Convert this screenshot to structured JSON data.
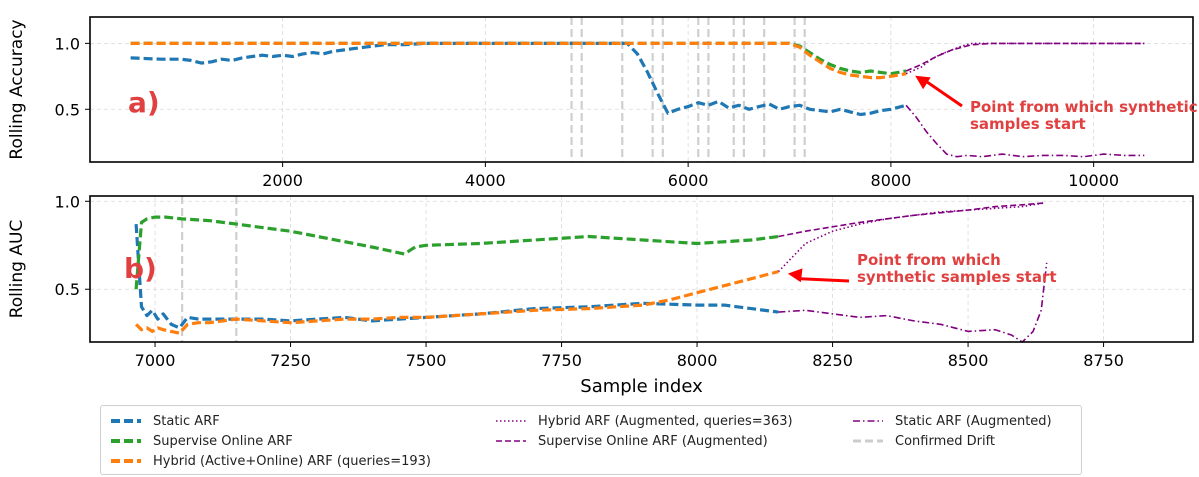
{
  "chart_data": [
    {
      "panel_label": "a)",
      "type": "line",
      "xlabel": "",
      "ylabel": "Rolling Accuracy",
      "xlim": [
        100,
        10980
      ],
      "ylim": [
        0.1,
        1.2
      ],
      "xticks": [
        "2000",
        "4000",
        "6000",
        "8000",
        "10000"
      ],
      "yticks": [
        "0.5",
        "1.0"
      ],
      "grid": true,
      "annotation": {
        "text_lines": [
          "Point from which synthetic",
          "samples start"
        ],
        "points_to": [
          8200,
          0.77
        ]
      },
      "drift_lines": [
        4850,
        4950,
        5350,
        5650,
        5750,
        6100,
        6200,
        6450,
        6550,
        6750,
        7050,
        7150
      ],
      "series": [
        {
          "name": "Static ARF",
          "x": [
            500,
            800,
            1000,
            1100,
            1200,
            1300,
            1400,
            1500,
            1600,
            1700,
            1800,
            1900,
            2000,
            2100,
            2200,
            2300,
            2400,
            2500,
            2600,
            2700,
            2800,
            2900,
            3000,
            3200,
            3400,
            3600,
            3800,
            4000,
            4200,
            4400,
            4600,
            4800,
            5000,
            5200,
            5300,
            5400,
            5500,
            5600,
            5700,
            5800,
            5900,
            6000,
            6100,
            6200,
            6300,
            6400,
            6500,
            6600,
            6700,
            6800,
            6900,
            7000,
            7100,
            7200,
            7300,
            7400,
            7500,
            7600,
            7700,
            7800,
            7900,
            8000,
            8150
          ],
          "y": [
            0.89,
            0.88,
            0.88,
            0.87,
            0.85,
            0.86,
            0.88,
            0.87,
            0.89,
            0.9,
            0.91,
            0.9,
            0.91,
            0.9,
            0.92,
            0.93,
            0.92,
            0.94,
            0.95,
            0.96,
            0.97,
            0.98,
            0.99,
            0.99,
            1.0,
            1.0,
            1.0,
            1.0,
            1.0,
            1.0,
            1.0,
            1.0,
            1.0,
            1.0,
            1.0,
            1.0,
            0.92,
            0.78,
            0.62,
            0.47,
            0.5,
            0.52,
            0.55,
            0.53,
            0.56,
            0.51,
            0.53,
            0.5,
            0.52,
            0.54,
            0.5,
            0.52,
            0.53,
            0.5,
            0.49,
            0.48,
            0.5,
            0.48,
            0.46,
            0.47,
            0.49,
            0.5,
            0.53
          ]
        },
        {
          "name": "Supervise Online ARF",
          "x": [
            500,
            1000,
            2000,
            3000,
            4000,
            5000,
            6000,
            7000,
            7100,
            7200,
            7300,
            7400,
            7500,
            7600,
            7700,
            7800,
            7900,
            8000,
            8150
          ],
          "y": [
            1.0,
            1.0,
            1.0,
            1.0,
            1.0,
            1.0,
            1.0,
            1.0,
            0.98,
            0.93,
            0.88,
            0.84,
            0.81,
            0.79,
            0.78,
            0.79,
            0.78,
            0.77,
            0.79
          ]
        },
        {
          "name": "Hybrid (Active+Online) ARF (queries=193)",
          "x": [
            500,
            1000,
            2000,
            3000,
            4000,
            5000,
            6000,
            7000,
            7100,
            7200,
            7300,
            7400,
            7500,
            7600,
            7700,
            7800,
            7900,
            8000,
            8150
          ],
          "y": [
            1.0,
            1.0,
            1.0,
            1.0,
            1.0,
            1.0,
            1.0,
            1.0,
            0.97,
            0.91,
            0.86,
            0.81,
            0.78,
            0.76,
            0.75,
            0.74,
            0.74,
            0.75,
            0.77
          ]
        },
        {
          "name": "Hybrid ARF (Augmented, queries=363)",
          "x": [
            8150,
            8300,
            8400,
            8500,
            8600,
            8700,
            8800,
            9000,
            9500,
            10000,
            10500
          ],
          "y": [
            0.77,
            0.82,
            0.88,
            0.92,
            0.95,
            0.98,
            1.0,
            1.0,
            1.0,
            1.0,
            1.0
          ]
        },
        {
          "name": "Supervise Online ARF (Augmented)",
          "x": [
            8150,
            8300,
            8450,
            8600,
            8800,
            9000,
            9500,
            10000,
            10500
          ],
          "y": [
            0.79,
            0.84,
            0.9,
            0.95,
            0.99,
            1.0,
            1.0,
            1.0,
            1.0
          ]
        },
        {
          "name": "Static ARF (Augmented)",
          "x": [
            8150,
            8250,
            8350,
            8450,
            8550,
            8650,
            8750,
            8900,
            9100,
            9300,
            9500,
            9700,
            9900,
            10100,
            10300,
            10500
          ],
          "y": [
            0.53,
            0.44,
            0.33,
            0.24,
            0.16,
            0.14,
            0.15,
            0.14,
            0.16,
            0.14,
            0.15,
            0.15,
            0.14,
            0.16,
            0.15,
            0.15
          ]
        }
      ]
    },
    {
      "panel_label": "b)",
      "type": "line",
      "xlabel": "Sample index",
      "ylabel": "Rolling AUC",
      "xlim": [
        6880,
        8915
      ],
      "ylim": [
        0.2,
        1.03
      ],
      "xticks": [
        "7000",
        "7250",
        "7500",
        "7750",
        "8000",
        "8250",
        "8500",
        "8750"
      ],
      "yticks": [
        "0.5",
        "1.0"
      ],
      "grid": true,
      "annotation": {
        "text_lines": [
          "Point from which",
          "synthetic samples start"
        ],
        "points_to": [
          8160,
          0.6
        ]
      },
      "drift_lines": [
        7050,
        7150
      ],
      "series": [
        {
          "name": "Static ARF",
          "x": [
            6965,
            6975,
            6985,
            6995,
            7005,
            7015,
            7030,
            7045,
            7060,
            7080,
            7100,
            7150,
            7200,
            7250,
            7300,
            7350,
            7400,
            7450,
            7500,
            7600,
            7700,
            7800,
            7900,
            8000,
            8050,
            8100,
            8150
          ],
          "y": [
            0.87,
            0.4,
            0.35,
            0.38,
            0.33,
            0.36,
            0.3,
            0.28,
            0.34,
            0.33,
            0.33,
            0.33,
            0.33,
            0.32,
            0.33,
            0.34,
            0.32,
            0.33,
            0.34,
            0.36,
            0.39,
            0.4,
            0.42,
            0.41,
            0.41,
            0.39,
            0.37
          ]
        },
        {
          "name": "Supervise Online ARF",
          "x": [
            6965,
            6975,
            6985,
            7000,
            7020,
            7050,
            7100,
            7150,
            7200,
            7250,
            7300,
            7350,
            7400,
            7460,
            7480,
            7500,
            7600,
            7700,
            7800,
            7900,
            8000,
            8100,
            8150
          ],
          "y": [
            0.5,
            0.88,
            0.9,
            0.91,
            0.91,
            0.9,
            0.89,
            0.87,
            0.85,
            0.83,
            0.8,
            0.77,
            0.74,
            0.7,
            0.74,
            0.75,
            0.76,
            0.78,
            0.8,
            0.78,
            0.76,
            0.78,
            0.8
          ]
        },
        {
          "name": "Hybrid (Active+Online) ARF (queries=193)",
          "x": [
            6965,
            6975,
            6985,
            6995,
            7005,
            7015,
            7030,
            7045,
            7060,
            7080,
            7100,
            7150,
            7200,
            7250,
            7300,
            7350,
            7400,
            7450,
            7500,
            7600,
            7700,
            7800,
            7900,
            7950,
            8000,
            8050,
            8100,
            8150
          ],
          "y": [
            0.3,
            0.27,
            0.28,
            0.26,
            0.28,
            0.27,
            0.26,
            0.25,
            0.3,
            0.31,
            0.31,
            0.33,
            0.32,
            0.31,
            0.32,
            0.33,
            0.33,
            0.34,
            0.34,
            0.36,
            0.38,
            0.39,
            0.41,
            0.44,
            0.48,
            0.52,
            0.56,
            0.6
          ]
        },
        {
          "name": "Hybrid ARF (Augmented, queries=363)",
          "x": [
            8150,
            8200,
            8250,
            8300,
            8350,
            8400,
            8450,
            8500,
            8550,
            8600,
            8640
          ],
          "y": [
            0.6,
            0.76,
            0.83,
            0.87,
            0.9,
            0.92,
            0.94,
            0.95,
            0.96,
            0.97,
            0.99
          ]
        },
        {
          "name": "Supervise Online ARF (Augmented)",
          "x": [
            8150,
            8200,
            8300,
            8400,
            8500,
            8550,
            8600,
            8640
          ],
          "y": [
            0.8,
            0.83,
            0.88,
            0.92,
            0.95,
            0.97,
            0.98,
            0.99
          ]
        },
        {
          "name": "Static ARF (Augmented)",
          "x": [
            8150,
            8200,
            8300,
            8350,
            8400,
            8450,
            8500,
            8550,
            8580,
            8600,
            8620,
            8635,
            8645
          ],
          "y": [
            0.37,
            0.38,
            0.34,
            0.35,
            0.32,
            0.3,
            0.26,
            0.27,
            0.24,
            0.2,
            0.26,
            0.38,
            0.65
          ]
        }
      ]
    }
  ],
  "legend": {
    "items": [
      {
        "label": "Static ARF",
        "color": "#1f77b4",
        "dash": "bold-dash"
      },
      {
        "label": "Supervise Online ARF",
        "color": "#2ca02c",
        "dash": "bold-dash"
      },
      {
        "label": "Hybrid (Active+Online) ARF (queries=193)",
        "color": "#ff7f0e",
        "dash": "bold-dash"
      },
      {
        "label": "Hybrid ARF (Augmented, queries=363)",
        "color": "#800080",
        "dash": "dotted"
      },
      {
        "label": "Supervise Online ARF (Augmented)",
        "color": "#800080",
        "dash": "dashed"
      },
      {
        "label": "Static ARF (Augmented)",
        "color": "#800080",
        "dash": "dash-dot"
      },
      {
        "label": "Confirmed Drift",
        "color": "#cccccc",
        "dash": "bold-dash"
      }
    ]
  }
}
